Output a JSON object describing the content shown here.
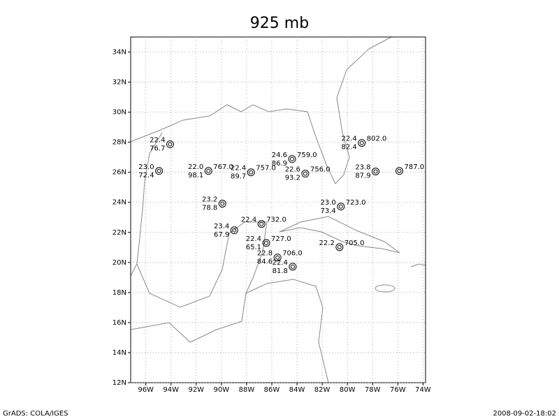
{
  "title": "925 mb",
  "footer": {
    "left": "GrADS: COLA/IGES",
    "right": "2008-09-02-18:02"
  },
  "map": {
    "xlim": [
      -97.2,
      -73.8
    ],
    "ylim": [
      12,
      35
    ],
    "grid": true,
    "xticks": [
      {
        "value": -96,
        "label": "96W"
      },
      {
        "value": -94,
        "label": "94W"
      },
      {
        "value": -92,
        "label": "92W"
      },
      {
        "value": -90,
        "label": "90W"
      },
      {
        "value": -88,
        "label": "88W"
      },
      {
        "value": -86,
        "label": "86W"
      },
      {
        "value": -84,
        "label": "84W"
      },
      {
        "value": -82,
        "label": "82W"
      },
      {
        "value": -80,
        "label": "80W"
      },
      {
        "value": -78,
        "label": "78W"
      },
      {
        "value": -76,
        "label": "76W"
      },
      {
        "value": -74,
        "label": "74W"
      }
    ],
    "yticks": [
      {
        "value": 12,
        "label": "12N"
      },
      {
        "value": 14,
        "label": "14N"
      },
      {
        "value": 16,
        "label": "16N"
      },
      {
        "value": 18,
        "label": "18N"
      },
      {
        "value": 20,
        "label": "20N"
      },
      {
        "value": 22,
        "label": "22N"
      },
      {
        "value": 24,
        "label": "24N"
      },
      {
        "value": 26,
        "label": "26N"
      },
      {
        "value": 28,
        "label": "28N"
      },
      {
        "value": 30,
        "label": "30N"
      },
      {
        "value": 32,
        "label": "32N"
      },
      {
        "value": 34,
        "label": "34N"
      }
    ]
  },
  "stations": [
    {
      "lon": -94.07,
      "lat": 27.86,
      "t": "22.4",
      "rh": "76.7"
    },
    {
      "lon": -84.39,
      "lat": 26.88,
      "t": "24.6",
      "rh": "86.9",
      "z": "759.0"
    },
    {
      "lon": -83.34,
      "lat": 25.91,
      "t": "22.6",
      "rh": "93.2",
      "z": "756.0"
    },
    {
      "lon": -78.86,
      "lat": 27.95,
      "t": "22.4",
      "rh": "82.4",
      "z": "802.0"
    },
    {
      "lon": -87.65,
      "lat": 26.0,
      "t": "22.4",
      "rh": "89.7",
      "z": "757.0"
    },
    {
      "lon": -91.03,
      "lat": 26.09,
      "t": "22.0",
      "rh": "98.1",
      "z": "767.0"
    },
    {
      "lon": -94.95,
      "lat": 26.09,
      "t": "23.0",
      "rh": "72.4"
    },
    {
      "lon": -89.92,
      "lat": 23.91,
      "t": "23.2",
      "rh": "78.8"
    },
    {
      "lon": -80.52,
      "lat": 23.72,
      "t": "23.0",
      "rh": "73.4",
      "z": "723.0"
    },
    {
      "lon": -86.82,
      "lat": 22.56,
      "t": "22.4",
      "z": "732.0"
    },
    {
      "lon": -88.98,
      "lat": 22.14,
      "t": "23.4",
      "rh": "67.9"
    },
    {
      "lon": -86.44,
      "lat": 21.3,
      "t": "22.4",
      "rh": "65.1",
      "z": "727.0"
    },
    {
      "lon": -80.63,
      "lat": 21.02,
      "t": "22.2",
      "z": "705.0"
    },
    {
      "lon": -85.55,
      "lat": 20.33,
      "t": "22.8",
      "rh": "84.6",
      "z": "706.0"
    },
    {
      "lon": -84.34,
      "lat": 19.72,
      "t": "22.4",
      "rh": "81.8"
    },
    {
      "lon": -77.76,
      "lat": 26.05,
      "t": "23.8",
      "rh": "87.9"
    },
    {
      "lon": -75.88,
      "lat": 26.09,
      "z": "787.0"
    }
  ]
}
